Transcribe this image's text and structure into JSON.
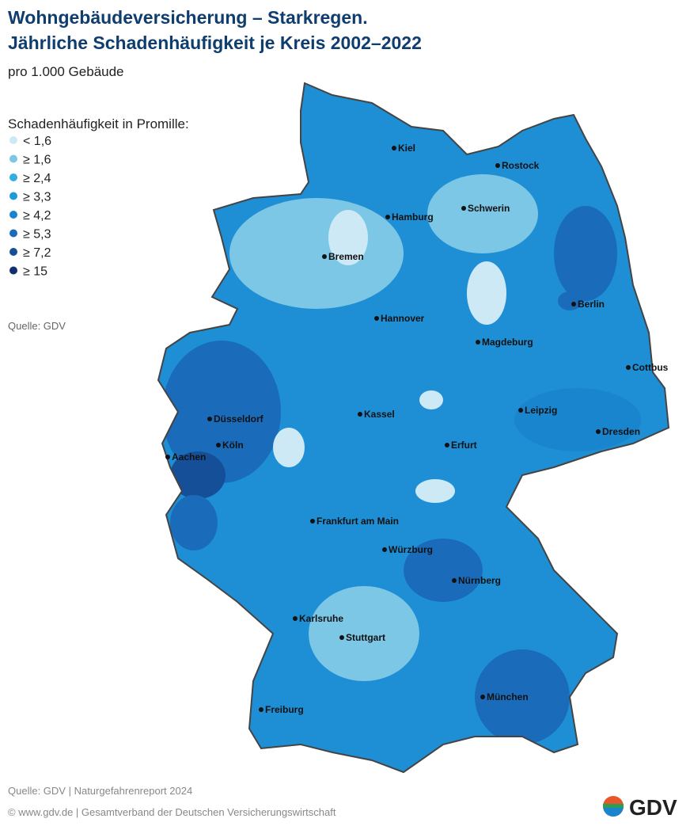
{
  "header": {
    "title": [
      "Wohngebäudeversicherung – Starkregen.",
      "Jährliche Schadenhäufigkeit je Kreis 2002–2022"
    ],
    "subtitle": "pro 1.000 Gebäude"
  },
  "legend": {
    "title": "Schadenhäufigkeit in Promille:",
    "items": [
      {
        "label": "< 1,6",
        "color": "#cde9f6"
      },
      {
        "label": "≥ 1,6",
        "color": "#7cc6e6"
      },
      {
        "label": "≥ 2,4",
        "color": "#35ade0"
      },
      {
        "label": "≥ 3,3",
        "color": "#1e9ad8"
      },
      {
        "label": "≥ 4,2",
        "color": "#1a85cf"
      },
      {
        "label": "≥ 5,3",
        "color": "#1a6cbb"
      },
      {
        "label": "≥ 7,2",
        "color": "#154f97"
      },
      {
        "label": "≥ 15",
        "color": "#0f2f6e"
      }
    ]
  },
  "source": "Quelle: GDV",
  "cities": [
    "Kiel",
    "Rostock",
    "Hamburg",
    "Schwerin",
    "Bremen",
    "Berlin",
    "Hannover",
    "Magdeburg",
    "Cottbus",
    "Leipzig",
    "Kassel",
    "Düsseldorf",
    "Dresden",
    "Köln",
    "Erfurt",
    "Aachen",
    "Frankfurt am Main",
    "Würzburg",
    "Nürnberg",
    "Karlsruhe",
    "Stuttgart",
    "München",
    "Freiburg"
  ],
  "footer": {
    "line1": "Quelle: GDV  |  Naturgefahrenreport 2024",
    "line2": "© www.gdv.de  |  Gesamtverband der Deutschen Versicherungswirtschaft",
    "logo": "GDV"
  }
}
